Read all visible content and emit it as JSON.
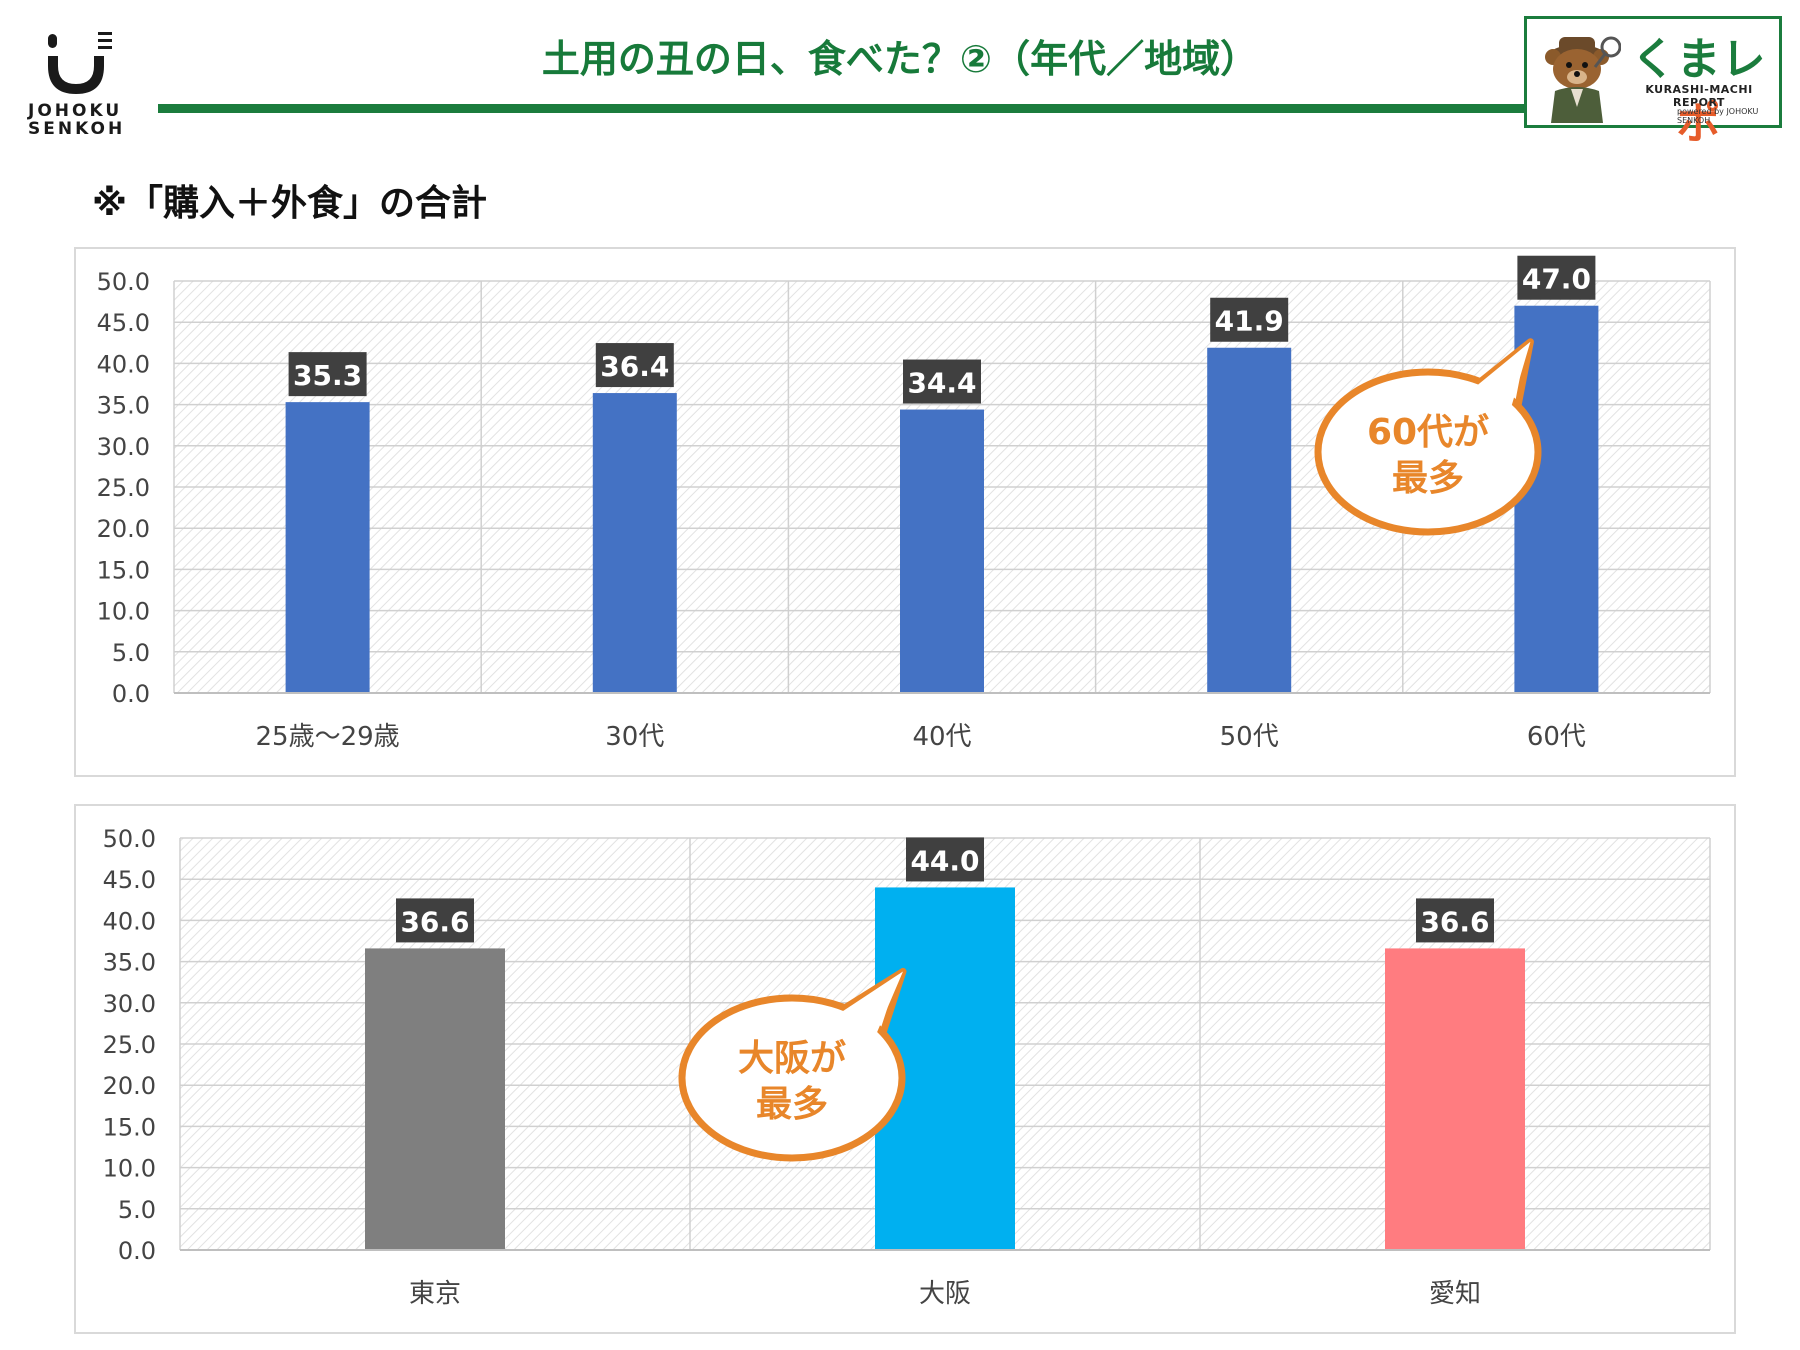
{
  "header": {
    "title": "土用の丑の日、食べた？②（年代／地域）",
    "company_line1": "JOHOKU",
    "company_line2": "SENKOH",
    "badge_brand_a": "くまレ",
    "badge_brand_b": "ポ",
    "badge_sub": "KURASHI-MACHI REPORT",
    "badge_powered": "powered by JOHOKU SENKOH"
  },
  "note": "※「購入＋外食」の合計",
  "colors": {
    "accent_green": "#1b7c3d",
    "title_green": "#177a3a",
    "bar_blue": "#4472c4",
    "tokyo": "#7f7f7f",
    "osaka": "#00b0f0",
    "aichi": "#ff7c80",
    "label_bg": "#404040",
    "callout": "#e8862a"
  },
  "chart_data": [
    {
      "type": "bar",
      "categories": [
        "25歳～29歳",
        "30代",
        "40代",
        "50代",
        "60代"
      ],
      "values": [
        35.3,
        36.4,
        34.4,
        41.9,
        47.0
      ],
      "value_labels": [
        "35.3",
        "36.4",
        "34.4",
        "41.9",
        "47.0"
      ],
      "ylim": [
        0,
        50
      ],
      "yticks": [
        "0.0",
        "5.0",
        "10.0",
        "15.0",
        "20.0",
        "25.0",
        "30.0",
        "35.0",
        "40.0",
        "45.0",
        "50.0"
      ],
      "grid": true,
      "annotation": {
        "lines": [
          "60代が",
          "最多"
        ],
        "points_to": "60代"
      }
    },
    {
      "type": "bar",
      "categories": [
        "東京",
        "大阪",
        "愛知"
      ],
      "values": [
        36.6,
        44.0,
        36.6
      ],
      "value_labels": [
        "36.6",
        "44.0",
        "36.6"
      ],
      "bar_colors": [
        "#7f7f7f",
        "#00b0f0",
        "#ff7c80"
      ],
      "ylim": [
        0,
        50
      ],
      "yticks": [
        "0.0",
        "5.0",
        "10.0",
        "15.0",
        "20.0",
        "25.0",
        "30.0",
        "35.0",
        "40.0",
        "45.0",
        "50.0"
      ],
      "grid": true,
      "annotation": {
        "lines": [
          "大阪が",
          "最多"
        ],
        "points_to": "大阪"
      }
    }
  ]
}
